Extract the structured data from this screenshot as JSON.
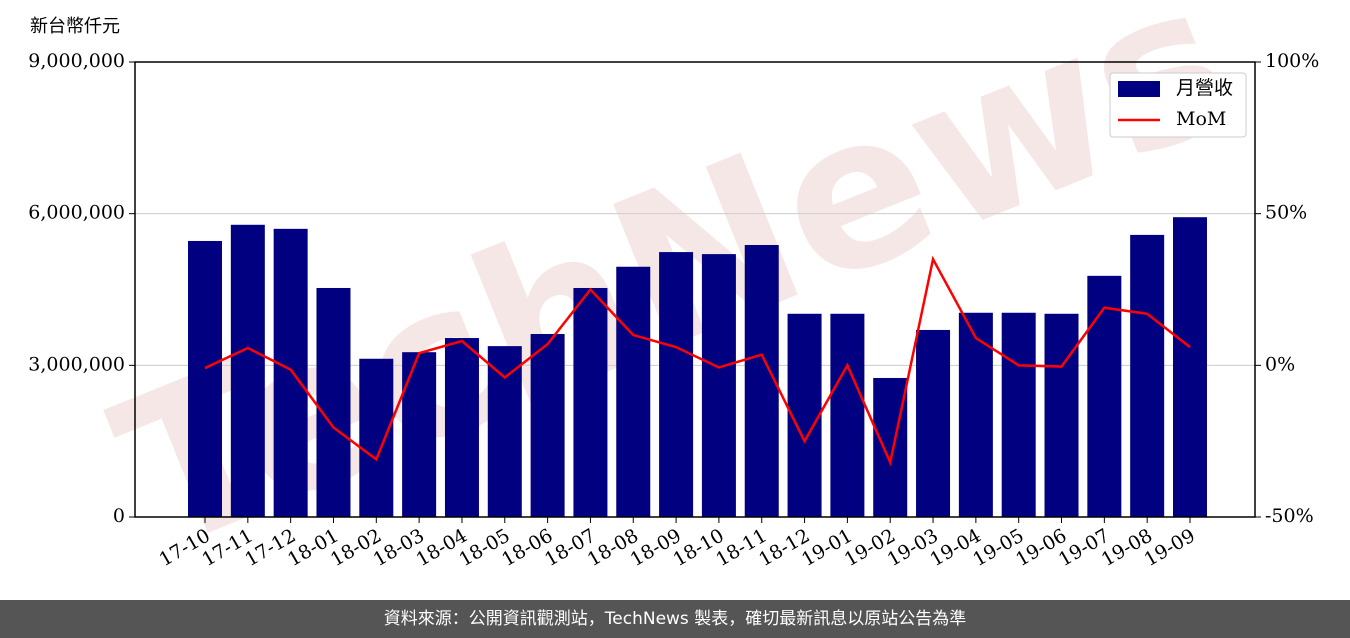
{
  "chart_data": {
    "type": "bar_line",
    "y_label": "新台幣仟元",
    "watermark": "TechNews",
    "footer": "資料來源：公開資訊觀測站，TechNews 製表，確切最新訊息以原站公告為準",
    "categories": [
      "17-10",
      "17-11",
      "17-12",
      "18-01",
      "18-02",
      "18-03",
      "18-04",
      "18-05",
      "18-06",
      "18-07",
      "18-08",
      "18-09",
      "18-10",
      "18-11",
      "18-12",
      "19-01",
      "19-02",
      "19-03",
      "19-04",
      "19-05",
      "19-06",
      "19-07",
      "19-08",
      "19-09"
    ],
    "series": [
      {
        "name": "月營收",
        "type": "bar",
        "color": "#000080",
        "values": [
          5460000,
          5780000,
          5700000,
          4530000,
          3130000,
          3260000,
          3540000,
          3380000,
          3620000,
          4530000,
          4950000,
          5240000,
          5200000,
          5380000,
          4020000,
          4020000,
          2750000,
          3700000,
          4040000,
          4040000,
          4020000,
          4770000,
          5580000,
          5930000
        ]
      },
      {
        "name": "MoM",
        "type": "line",
        "axis": "y2",
        "color": "#ff0000",
        "values": [
          -0.9,
          5.7,
          -1.4,
          -20.5,
          -31,
          4,
          8,
          -4,
          7,
          25,
          10,
          6,
          -0.7,
          3.5,
          -25,
          0,
          -32,
          35,
          9,
          0,
          -0.4,
          19,
          17,
          6
        ]
      }
    ],
    "ylim": [
      0,
      9000000
    ],
    "yticks": [
      0,
      {
        "value": 3000000,
        "label": "3,000,000"
      },
      {
        "value": 6000000,
        "label": "6,000,000"
      },
      {
        "value": 9000000,
        "label": "9,000,000"
      }
    ],
    "y2lim": [
      -50,
      100
    ],
    "y2ticks": [
      {
        "value": -50,
        "label": "-50%"
      },
      {
        "value": 0,
        "label": "0%"
      },
      {
        "value": 50,
        "label": "50%"
      },
      {
        "value": 100,
        "label": "100%"
      }
    ],
    "grid": true,
    "legend": "upper right"
  }
}
